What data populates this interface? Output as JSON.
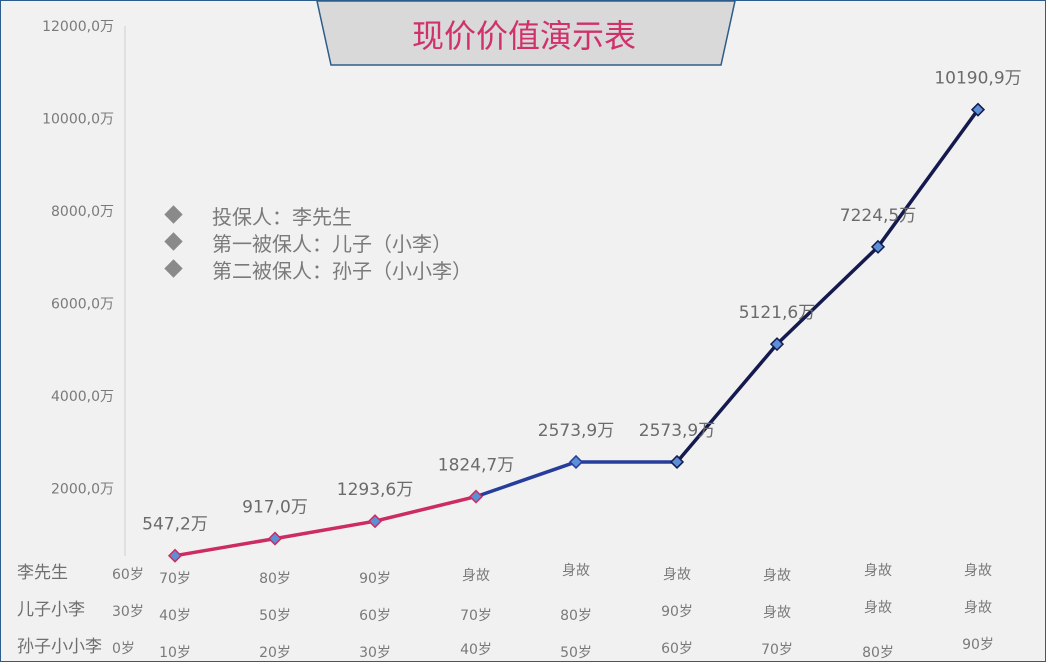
{
  "chart_data": {
    "type": "line",
    "title": "现价价值演示表",
    "ylim": [
      0,
      12000
    ],
    "y_ticks": [
      "2000,0万",
      "4000,0万",
      "6000,0万",
      "8000,0万",
      "10000,0万",
      "12000,0万"
    ],
    "y_tick_values": [
      2000,
      4000,
      6000,
      8000,
      10000,
      12000
    ],
    "x": [
      1,
      2,
      3,
      4,
      5,
      6,
      7,
      8,
      9
    ],
    "values": [
      547.2,
      917.0,
      1293.6,
      1824.7,
      2573.9,
      2573.9,
      5121.6,
      7224.5,
      10190.9
    ],
    "data_labels": [
      "547,2万",
      "917,0万",
      "1293,6万",
      "1824,7万",
      "2573,9万",
      "2573,9万",
      "5121,6万",
      "7224,5万",
      "10190,9万"
    ],
    "segment_colors": [
      {
        "from": 0,
        "to": 3,
        "color": "#cc2c62"
      },
      {
        "from": 3,
        "to": 5,
        "color": "#263d9b"
      },
      {
        "from": 5,
        "to": 8,
        "color": "#141a4e"
      }
    ],
    "marker_color": "#5b8fd6",
    "grid": false,
    "legend_position": "left"
  },
  "legend": [
    {
      "marker": "diamond-icon",
      "text": "投保人：李先生"
    },
    {
      "marker": "diamond-icon",
      "text": "第一被保人：儿子（小李）"
    },
    {
      "marker": "diamond-icon",
      "text": "第二被保人：孙子（小小李）"
    }
  ],
  "age_rows": [
    {
      "label": "李先生",
      "start": "60岁",
      "ages": [
        "70岁",
        "80岁",
        "90岁",
        "身故",
        "身故",
        "身故",
        "身故",
        "身故",
        "身故"
      ]
    },
    {
      "label": "儿子小李",
      "start": "30岁",
      "ages": [
        "40岁",
        "50岁",
        "60岁",
        "70岁",
        "80岁",
        "90岁",
        "身故",
        "身故",
        "身故"
      ]
    },
    {
      "label": "孙子小小李",
      "start": "0岁",
      "ages": [
        "10岁",
        "20岁",
        "30岁",
        "40岁",
        "50岁",
        "60岁",
        "70岁",
        "80岁",
        "90岁"
      ]
    }
  ]
}
